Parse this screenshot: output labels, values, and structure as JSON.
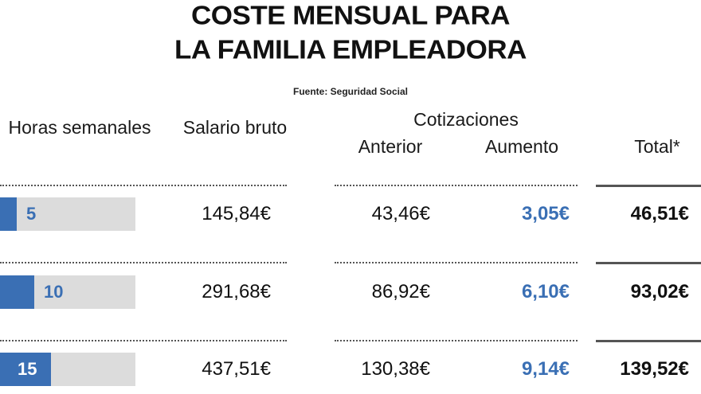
{
  "title_line1": "COSTE MENSUAL PARA",
  "title_line2": "LA FAMILIA EMPLEADORA",
  "source": "Fuente: Seguridad Social",
  "headers": {
    "horas": "Horas semanales",
    "salario": "Salario bruto",
    "cotizaciones": "Cotizaciones",
    "anterior": "Anterior",
    "aumento": "Aumento",
    "total": "Total*"
  },
  "colors": {
    "accent": "#3a6fb4",
    "track": "#dcdcdc",
    "rule": "#555555"
  },
  "chart_data": {
    "type": "table",
    "columns": [
      "Horas semanales",
      "Salario bruto",
      "Anterior",
      "Aumento",
      "Total*"
    ],
    "bar_max_hours": 40,
    "rows": [
      {
        "hours": 5,
        "hours_label": "5",
        "salario": "145,84€",
        "anterior": "43,46€",
        "aumento": "3,05€",
        "total": "46,51€"
      },
      {
        "hours": 10,
        "hours_label": "10",
        "salario": "291,68€",
        "anterior": "86,92€",
        "aumento": "6,10€",
        "total": "93,02€"
      },
      {
        "hours": 15,
        "hours_label": "15",
        "salario": "437,51€",
        "anterior": "130,38€",
        "aumento": "9,14€",
        "total": "139,52€"
      }
    ]
  }
}
